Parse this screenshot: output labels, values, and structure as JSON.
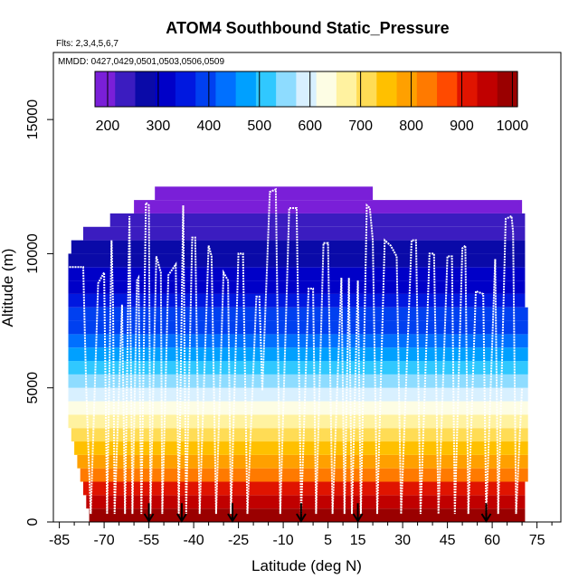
{
  "chart_data": {
    "type": "heatmap",
    "title": "ATOM4 Southbound Static_Pressure",
    "flights_note": "Flts: 2,3,4,5,6,7",
    "dates_note": "MMDD: 0427,0429,0501,0503,0506,0509",
    "xlabel": "Latitude (deg N)",
    "ylabel": "Altitude (m)",
    "xlim": [
      -87,
      83
    ],
    "ylim": [
      0,
      17500
    ],
    "x_ticks": [
      -85,
      -70,
      -55,
      -40,
      -25,
      -10,
      5,
      15,
      30,
      45,
      60,
      75
    ],
    "y_ticks": [
      0,
      5000,
      10000,
      15000
    ],
    "colorbar": {
      "min": 175,
      "max": 1010,
      "ticks": [
        200,
        300,
        400,
        500,
        600,
        700,
        800,
        900,
        1000
      ],
      "colors": [
        "#7a1fd8",
        "#3b1cc0",
        "#0a0aa8",
        "#0000c8",
        "#0018e0",
        "#0040f0",
        "#0070ff",
        "#00a0ff",
        "#30c8ff",
        "#8edcff",
        "#d8f0ff",
        "#fdfde4",
        "#fff2a0",
        "#ffdc55",
        "#ffc000",
        "#ffa000",
        "#ff7a00",
        "#ff4a00",
        "#e01400",
        "#c00000",
        "#9a0000"
      ]
    },
    "layers": [
      {
        "alt": 0,
        "pressure": 1000,
        "lat_min": -75,
        "lat_max": 71
      },
      {
        "alt": 500,
        "pressure": 960,
        "lat_min": -76,
        "lat_max": 71
      },
      {
        "alt": 1000,
        "pressure": 905,
        "lat_min": -77,
        "lat_max": 71
      },
      {
        "alt": 1500,
        "pressure": 850,
        "lat_min": -78,
        "lat_max": 72
      },
      {
        "alt": 2000,
        "pressure": 795,
        "lat_min": -79,
        "lat_max": 72
      },
      {
        "alt": 2500,
        "pressure": 750,
        "lat_min": -80,
        "lat_max": 72
      },
      {
        "alt": 3000,
        "pressure": 700,
        "lat_min": -81,
        "lat_max": 72
      },
      {
        "alt": 3500,
        "pressure": 660,
        "lat_min": -82,
        "lat_max": 72
      },
      {
        "alt": 4000,
        "pressure": 615,
        "lat_min": -82,
        "lat_max": 72
      },
      {
        "alt": 4500,
        "pressure": 575,
        "lat_min": -82,
        "lat_max": 72
      },
      {
        "alt": 5000,
        "pressure": 540,
        "lat_min": -82,
        "lat_max": 72
      },
      {
        "alt": 5500,
        "pressure": 505,
        "lat_min": -82,
        "lat_max": 72
      },
      {
        "alt": 6000,
        "pressure": 470,
        "lat_min": -82,
        "lat_max": 72
      },
      {
        "alt": 6500,
        "pressure": 440,
        "lat_min": -82,
        "lat_max": 72
      },
      {
        "alt": 7000,
        "pressure": 410,
        "lat_min": -82,
        "lat_max": 72
      },
      {
        "alt": 7500,
        "pressure": 380,
        "lat_min": -82,
        "lat_max": 72
      },
      {
        "alt": 8000,
        "pressure": 355,
        "lat_min": -82,
        "lat_max": 71
      },
      {
        "alt": 8500,
        "pressure": 330,
        "lat_min": -82,
        "lat_max": 71
      },
      {
        "alt": 9000,
        "pressure": 305,
        "lat_min": -82,
        "lat_max": 71
      },
      {
        "alt": 9500,
        "pressure": 285,
        "lat_min": -82,
        "lat_max": 71
      },
      {
        "alt": 10000,
        "pressure": 265,
        "lat_min": -81,
        "lat_max": 71
      },
      {
        "alt": 10500,
        "pressure": 245,
        "lat_min": -77,
        "lat_max": 71
      },
      {
        "alt": 11000,
        "pressure": 225,
        "lat_min": -68,
        "lat_max": 71
      },
      {
        "alt": 11500,
        "pressure": 208,
        "lat_min": -60,
        "lat_max": 70
      },
      {
        "alt": 12000,
        "pressure": 192,
        "lat_min": -53,
        "lat_max": 20
      }
    ],
    "flight_track": [
      [
        -82.5,
        1800
      ],
      [
        -82.5,
        9500
      ],
      [
        -77,
        9500
      ],
      [
        -76,
        5000
      ],
      [
        -74.5,
        300
      ],
      [
        -72,
        8900
      ],
      [
        -70,
        9300
      ],
      [
        -69,
        300
      ],
      [
        -67.5,
        10500
      ],
      [
        -67,
        8000
      ],
      [
        -66.5,
        300
      ],
      [
        -64,
        8100
      ],
      [
        -63,
        300
      ],
      [
        -61.5,
        11400
      ],
      [
        -60.5,
        300
      ],
      [
        -59,
        9000
      ],
      [
        -58.5,
        9100
      ],
      [
        -57.5,
        300
      ],
      [
        -56,
        11900
      ],
      [
        -55,
        11800
      ],
      [
        -54.5,
        300
      ],
      [
        -52.5,
        9900
      ],
      [
        -51,
        9300
      ],
      [
        -50.5,
        300
      ],
      [
        -48.5,
        9200
      ],
      [
        -46,
        9600
      ],
      [
        -45,
        300
      ],
      [
        -43.5,
        11800
      ],
      [
        -42.5,
        300
      ],
      [
        -40.5,
        10600
      ],
      [
        -39.5,
        10600
      ],
      [
        -38,
        300
      ],
      [
        -35,
        10300
      ],
      [
        -34,
        9900
      ],
      [
        -32.5,
        300
      ],
      [
        -30,
        9300
      ],
      [
        -28.5,
        9000
      ],
      [
        -27.5,
        300
      ],
      [
        -25,
        10000
      ],
      [
        -23.5,
        10000
      ],
      [
        -22,
        300
      ],
      [
        -19,
        8400
      ],
      [
        -18,
        8400
      ],
      [
        -17,
        4900
      ],
      [
        -14.5,
        12300
      ],
      [
        -12.5,
        12400
      ],
      [
        -11,
        300
      ],
      [
        -8,
        11700
      ],
      [
        -5.5,
        11700
      ],
      [
        -4,
        300
      ],
      [
        -1.5,
        8700
      ],
      [
        0,
        8700
      ],
      [
        1,
        300
      ],
      [
        3.5,
        10400
      ],
      [
        5,
        10400
      ],
      [
        6.5,
        300
      ],
      [
        9.5,
        9100
      ],
      [
        10.5,
        300
      ],
      [
        12,
        9100
      ],
      [
        13,
        300
      ],
      [
        15,
        9000
      ],
      [
        16,
        300
      ],
      [
        18,
        11800
      ],
      [
        19,
        11700
      ],
      [
        20,
        10500
      ],
      [
        21.5,
        300
      ],
      [
        24,
        10500
      ],
      [
        26,
        10300
      ],
      [
        28,
        9900
      ],
      [
        29.5,
        300
      ],
      [
        33,
        10500
      ],
      [
        34.5,
        10500
      ],
      [
        36,
        300
      ],
      [
        39,
        10000
      ],
      [
        40.5,
        10000
      ],
      [
        42,
        300
      ],
      [
        45,
        9900
      ],
      [
        46.5,
        9900
      ],
      [
        47.5,
        300
      ],
      [
        50,
        10200
      ],
      [
        51,
        10300
      ],
      [
        52,
        300
      ],
      [
        54.5,
        8600
      ],
      [
        57,
        8500
      ],
      [
        58,
        300
      ],
      [
        61,
        9800
      ],
      [
        62,
        300
      ],
      [
        64.5,
        11300
      ],
      [
        66.5,
        11400
      ],
      [
        67,
        10800
      ],
      [
        68,
        300
      ],
      [
        70,
        5000
      ]
    ],
    "markers": [
      -55,
      -44,
      -27,
      -4,
      15,
      58
    ]
  }
}
